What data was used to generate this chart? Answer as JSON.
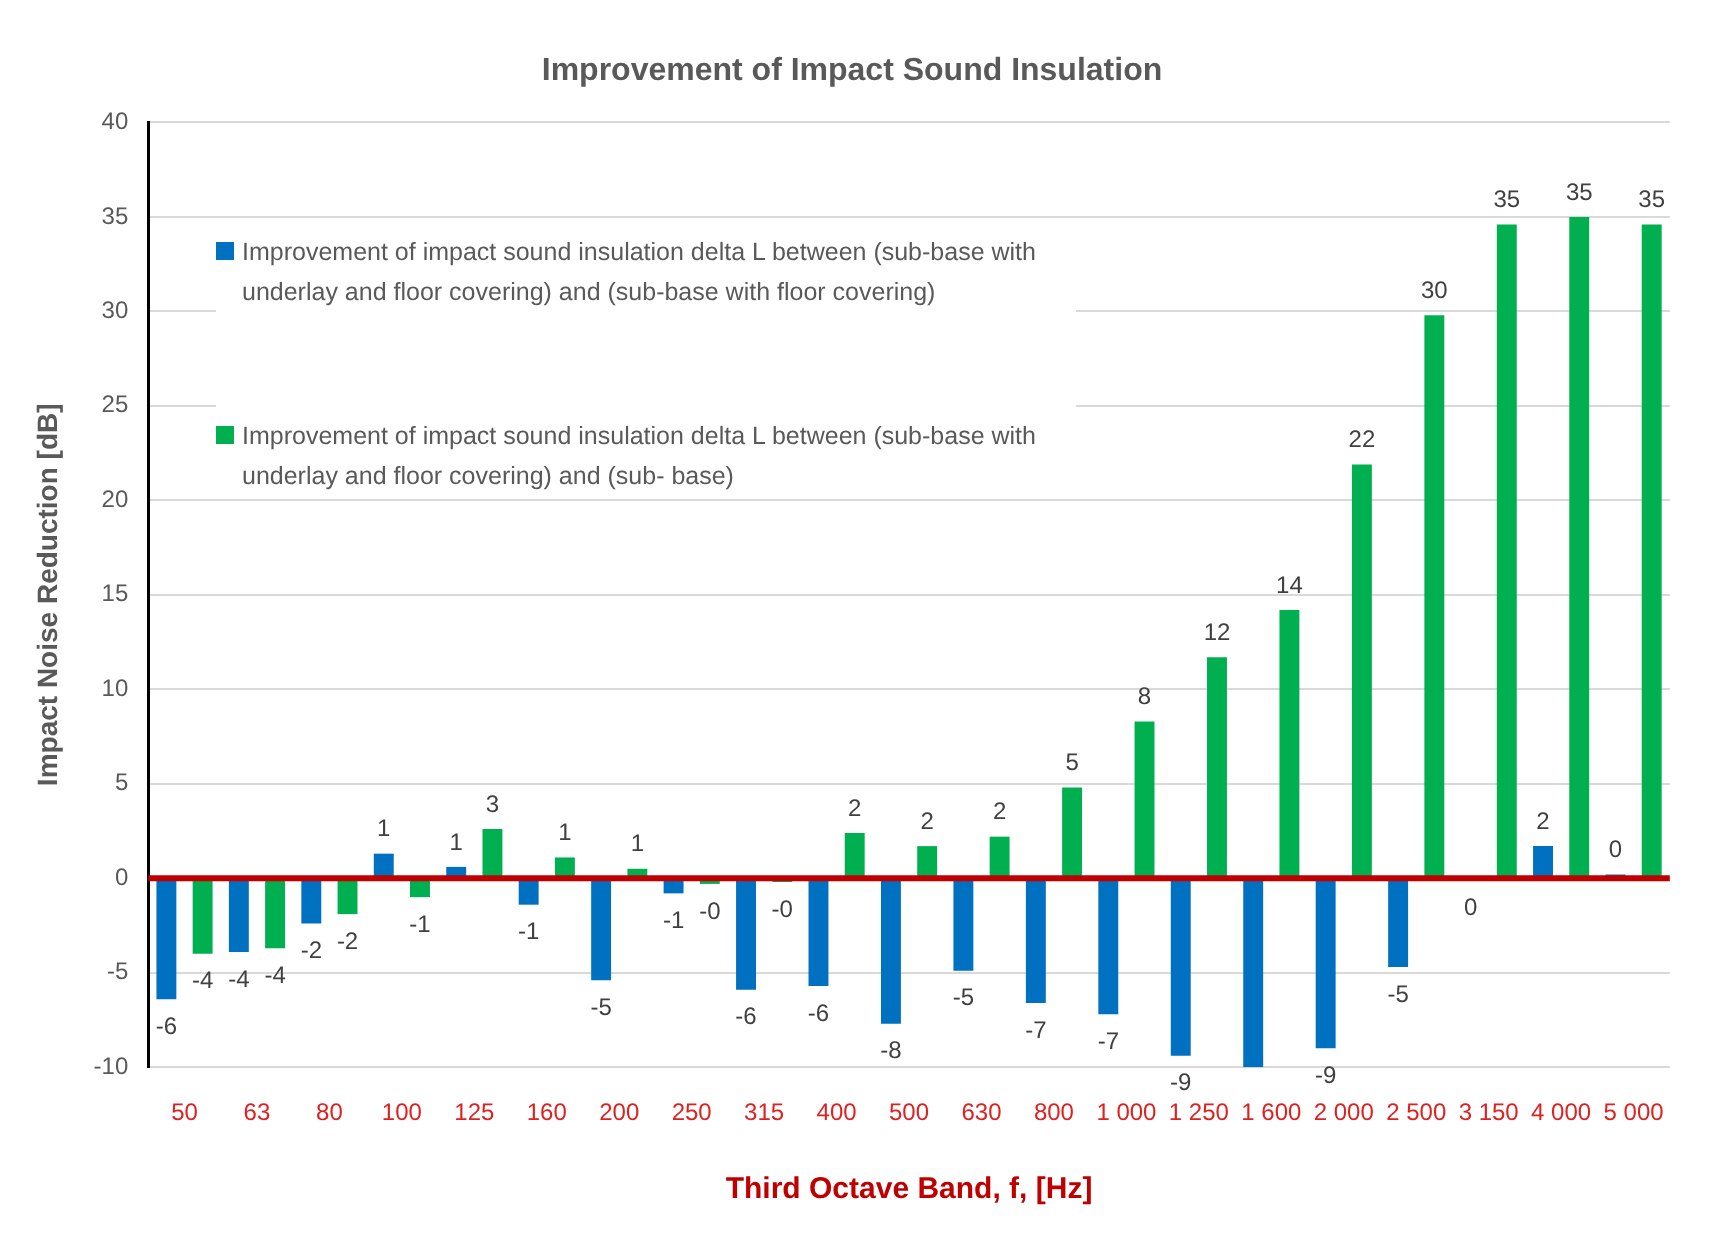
{
  "chart_data": {
    "type": "bar",
    "title": "Improvement of Impact Sound Insulation",
    "xlabel": "Third Octave Band, f, [Hz]",
    "ylabel": "Impact Noise Reduction [dB]",
    "categories": [
      "50",
      "63",
      "80",
      "100",
      "125",
      "160",
      "200",
      "250",
      "315",
      "400",
      "500",
      "630",
      "800",
      "1 000",
      "1 250",
      "1 600",
      "2 000",
      "2 500",
      "3 150",
      "4 000",
      "5 000"
    ],
    "series": [
      {
        "name": "Improvement of impact sound insulation delta L between (sub-base with underlay and floor covering) and (sub-base with floor covering)",
        "color": "#0070c0",
        "values": [
          -6.4,
          -3.9,
          -2.4,
          1.3,
          0.6,
          -1.4,
          -5.4,
          -0.8,
          -5.9,
          -5.7,
          -7.7,
          -4.9,
          -6.6,
          -7.2,
          -9.4,
          -10,
          -9.0,
          -4.7,
          -0.1,
          1.7,
          0.2
        ],
        "value_labels": [
          "-6",
          "-4",
          "-2",
          "1",
          "1",
          "-1",
          "-5",
          "-1",
          "-6",
          "-6",
          "-8",
          "-5",
          "-7",
          "-7",
          "-9",
          null,
          "-9",
          "-5",
          "0",
          "2",
          "0"
        ]
      },
      {
        "name": "Improvement of impact sound insulation delta L between (sub-base with underlay and floor covering) and (sub- base)",
        "color": "#00b050",
        "values": [
          -4.0,
          -3.7,
          -1.9,
          -1.0,
          2.6,
          1.1,
          0.5,
          -0.3,
          -0.2,
          2.4,
          1.7,
          2.2,
          4.8,
          8.3,
          11.7,
          14.2,
          21.9,
          29.8,
          34.6,
          35.0,
          34.6
        ],
        "value_labels": [
          "-4",
          "-4",
          "-2",
          "-1",
          "3",
          "1",
          "1",
          "-0",
          "-0",
          "2",
          "2",
          "2",
          "5",
          "8",
          "12",
          "14",
          "22",
          "30",
          "35",
          "35",
          "35"
        ]
      }
    ],
    "ref_lines": [
      {
        "axis": "y",
        "value": 0,
        "color": "#c00000"
      }
    ],
    "ylim": [
      -10,
      40
    ],
    "yticks": [
      -10,
      -5,
      0,
      5,
      10,
      15,
      20,
      25,
      30,
      35,
      40
    ],
    "grid": "y",
    "legend": "top left"
  }
}
